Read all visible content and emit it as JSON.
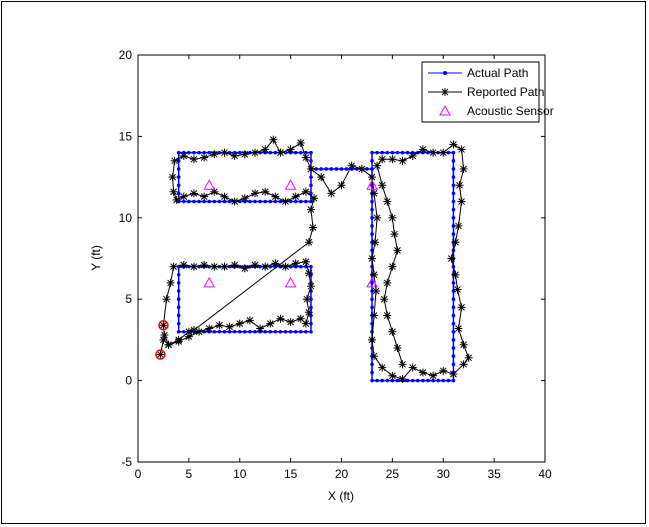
{
  "chart_data": {
    "type": "scatter",
    "xlabel": "X (ft)",
    "ylabel": "Y (ft)",
    "xlim": [
      0,
      40
    ],
    "ylim": [
      -5,
      20
    ],
    "xticks": [
      "0",
      "5",
      "10",
      "15",
      "20",
      "25",
      "30",
      "35",
      "40"
    ],
    "yticks": [
      "-5",
      "0",
      "5",
      "10",
      "15",
      "20"
    ],
    "grid": false,
    "legend_position": "top-right",
    "series": [
      {
        "name": "Actual Path",
        "style": "line-dot",
        "color": "#0000ff",
        "segments": [
          [
            [
              4,
              3
            ],
            [
              17,
              3
            ],
            [
              17,
              7
            ],
            [
              4,
              7
            ],
            [
              4,
              3
            ]
          ],
          [
            [
              4,
              11
            ],
            [
              17,
              11
            ],
            [
              17,
              14
            ],
            [
              4,
              14
            ],
            [
              4,
              11
            ]
          ],
          [
            [
              17,
              13
            ],
            [
              23,
              13
            ],
            [
              23,
              0
            ],
            [
              31,
              0
            ],
            [
              31,
              14
            ],
            [
              23,
              14
            ],
            [
              23,
              13
            ]
          ]
        ]
      },
      {
        "name": "Reported Path",
        "style": "line-star",
        "color": "#000000",
        "points": [
          [
            2.2,
            1.6
          ],
          [
            2.5,
            2.5
          ],
          [
            3.0,
            2.2
          ],
          [
            4.0,
            2.4
          ],
          [
            5.0,
            2.7
          ],
          [
            6.0,
            3.0
          ],
          [
            7.0,
            3.2
          ],
          [
            8.0,
            3.4
          ],
          [
            9.0,
            3.3
          ],
          [
            10.0,
            3.5
          ],
          [
            11.0,
            3.7
          ],
          [
            12.0,
            3.2
          ],
          [
            13.0,
            3.5
          ],
          [
            14.0,
            3.8
          ],
          [
            15.0,
            3.6
          ],
          [
            16.0,
            3.8
          ],
          [
            16.5,
            3.5
          ],
          [
            16.8,
            4.2
          ],
          [
            16.6,
            5.0
          ],
          [
            17.0,
            5.8
          ],
          [
            16.8,
            6.6
          ],
          [
            16.5,
            7.3
          ],
          [
            15.5,
            7.2
          ],
          [
            14.5,
            7.0
          ],
          [
            13.5,
            7.2
          ],
          [
            12.5,
            7.0
          ],
          [
            11.5,
            7.1
          ],
          [
            10.5,
            6.9
          ],
          [
            9.5,
            7.1
          ],
          [
            8.5,
            7.0
          ],
          [
            7.5,
            7.0
          ],
          [
            6.5,
            7.1
          ],
          [
            5.5,
            7.0
          ],
          [
            4.5,
            7.1
          ],
          [
            3.5,
            7.0
          ],
          [
            3.2,
            6.0
          ],
          [
            2.8,
            5.0
          ],
          [
            2.5,
            3.4
          ],
          [
            2.6,
            2.8
          ],
          [
            3.0,
            2.2
          ],
          [
            4.0,
            2.5
          ],
          [
            5.0,
            3.0
          ],
          [
            5.5,
            3.1
          ],
          [
            16.8,
            8.5
          ],
          [
            17.2,
            9.4
          ],
          [
            17.0,
            10.5
          ],
          [
            17.3,
            11.2
          ],
          [
            16.5,
            11.6
          ],
          [
            15.5,
            11.3
          ],
          [
            14.5,
            11.0
          ],
          [
            13.5,
            11.3
          ],
          [
            12.5,
            11.6
          ],
          [
            11.5,
            11.5
          ],
          [
            10.5,
            11.2
          ],
          [
            9.5,
            11.0
          ],
          [
            8.5,
            11.3
          ],
          [
            7.5,
            11.6
          ],
          [
            6.5,
            11.3
          ],
          [
            5.5,
            11.5
          ],
          [
            4.5,
            11.3
          ],
          [
            3.8,
            11.1
          ],
          [
            3.5,
            11.6
          ],
          [
            3.4,
            12.5
          ],
          [
            3.6,
            13.5
          ],
          [
            4.5,
            13.8
          ],
          [
            5.5,
            13.6
          ],
          [
            6.5,
            13.7
          ],
          [
            7.5,
            13.9
          ],
          [
            8.5,
            14.0
          ],
          [
            9.5,
            13.8
          ],
          [
            10.5,
            13.9
          ],
          [
            11.5,
            14.0
          ],
          [
            12.5,
            14.2
          ],
          [
            13.3,
            14.8
          ],
          [
            14.0,
            14.0
          ],
          [
            15.0,
            14.2
          ],
          [
            16.0,
            14.6
          ],
          [
            16.5,
            13.7
          ],
          [
            17.0,
            13.0
          ],
          [
            18.0,
            12.5
          ],
          [
            19.0,
            11.5
          ],
          [
            20.0,
            12.0
          ],
          [
            21.0,
            13.2
          ],
          [
            22.0,
            13.0
          ],
          [
            23.0,
            12.5
          ],
          [
            23.2,
            11.5
          ],
          [
            23.5,
            10.0
          ],
          [
            23.3,
            8.5
          ],
          [
            23.0,
            7.5
          ],
          [
            23.2,
            6.5
          ],
          [
            23.4,
            5.5
          ],
          [
            23.2,
            4.0
          ],
          [
            23.0,
            2.5
          ],
          [
            23.2,
            1.5
          ],
          [
            24.0,
            0.8
          ],
          [
            25.0,
            0.3
          ],
          [
            26.0,
            0.1
          ],
          [
            27.0,
            0.8
          ],
          [
            28.0,
            0.5
          ],
          [
            29.0,
            0.3
          ],
          [
            30.0,
            0.6
          ],
          [
            31.0,
            0.4
          ],
          [
            32.0,
            1.0
          ],
          [
            32.5,
            1.4
          ],
          [
            32.0,
            2.2
          ],
          [
            31.5,
            3.2
          ],
          [
            31.8,
            4.5
          ],
          [
            31.4,
            5.6
          ],
          [
            31.2,
            6.5
          ],
          [
            30.8,
            7.5
          ],
          [
            31.2,
            8.5
          ],
          [
            31.5,
            9.5
          ],
          [
            31.8,
            11.0
          ],
          [
            31.6,
            12.0
          ],
          [
            32.0,
            13.0
          ],
          [
            31.8,
            14.2
          ],
          [
            31.0,
            14.5
          ],
          [
            30.0,
            14.0
          ],
          [
            29.0,
            14.0
          ],
          [
            28.0,
            14.2
          ],
          [
            27.0,
            13.8
          ],
          [
            26.0,
            13.5
          ],
          [
            25.0,
            13.6
          ],
          [
            24.0,
            13.6
          ],
          [
            23.5,
            13.2
          ],
          [
            24.0,
            12.0
          ],
          [
            24.5,
            11.0
          ],
          [
            25.0,
            10.0
          ],
          [
            25.2,
            9.0
          ],
          [
            25.5,
            8.0
          ],
          [
            25.0,
            7.0
          ],
          [
            24.5,
            6.0
          ],
          [
            24.2,
            5.0
          ],
          [
            24.5,
            4.0
          ],
          [
            25.0,
            3.0
          ],
          [
            25.5,
            2.0
          ],
          [
            26.0,
            1.0
          ]
        ]
      },
      {
        "name": "Acoustic Sensor",
        "style": "triangle",
        "color": "#ff00ff",
        "points": [
          [
            7,
            12
          ],
          [
            15,
            12
          ],
          [
            23,
            12
          ],
          [
            7,
            6
          ],
          [
            15,
            6
          ],
          [
            23,
            6
          ]
        ]
      }
    ],
    "highlight_points": [
      [
        2.2,
        1.6
      ],
      [
        2.5,
        3.4
      ]
    ],
    "highlight_color": "#ff0000"
  }
}
